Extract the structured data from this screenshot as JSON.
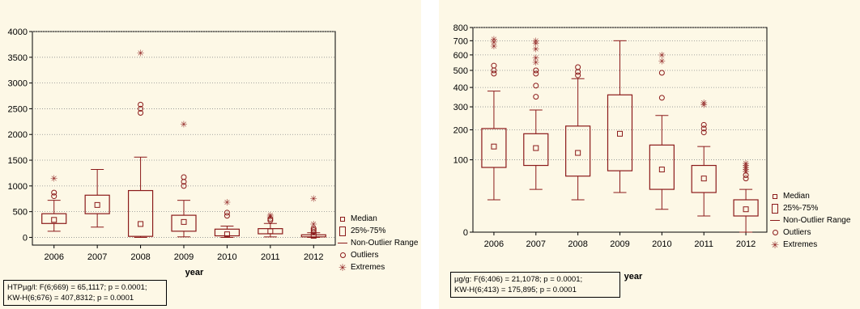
{
  "colors": {
    "box": "#8b1a1a",
    "grid": "#8c8c8c",
    "panel": "#fdf8e6"
  },
  "legend": {
    "median": "Median",
    "iqr": "25%-75%",
    "range": "Non-Outlier Range",
    "outliers": "Outliers",
    "extremes": "Extremes"
  },
  "chart_data": [
    {
      "type": "box",
      "xlabel": "year",
      "ylabel": "",
      "categories": [
        "2006",
        "2007",
        "2008",
        "2009",
        "2010",
        "2011",
        "2012"
      ],
      "yticks": [
        0,
        500,
        1000,
        1500,
        2000,
        2500,
        3000,
        3500,
        4000
      ],
      "ylim": [
        -150,
        4000
      ],
      "grid": "horizontal dotted",
      "legend_position": "bottom-right",
      "stats": [
        "HTPµg/l:  F(6;669) = 65,1117; p = 0.0001;",
        "KW-H(6;676) = 407,8312; p = 0.0001"
      ],
      "boxes": [
        {
          "median": 340,
          "q1": 270,
          "q3": 460,
          "whisker_low": 120,
          "whisker_high": 720,
          "outliers": [
            800,
            870
          ],
          "extremes": [
            1150
          ]
        },
        {
          "median": 630,
          "q1": 460,
          "q3": 820,
          "whisker_low": 200,
          "whisker_high": 1320,
          "outliers": [],
          "extremes": []
        },
        {
          "median": 260,
          "q1": 20,
          "q3": 910,
          "whisker_low": 0,
          "whisker_high": 1560,
          "outliers": [
            2420,
            2500,
            2580
          ],
          "extremes": [
            3580
          ]
        },
        {
          "median": 300,
          "q1": 120,
          "q3": 430,
          "whisker_low": 10,
          "whisker_high": 720,
          "outliers": [
            1000,
            1080,
            1170
          ],
          "extremes": [
            2200
          ]
        },
        {
          "median": 60,
          "q1": 30,
          "q3": 160,
          "whisker_low": 0,
          "whisker_high": 220,
          "outliers": [
            420,
            480
          ],
          "extremes": [
            680
          ]
        },
        {
          "median": 120,
          "q1": 70,
          "q3": 170,
          "whisker_low": 10,
          "whisker_high": 270,
          "outliers": [
            330,
            360
          ],
          "extremes": [
            400,
            430
          ]
        },
        {
          "median": 30,
          "q1": 10,
          "q3": 50,
          "whisker_low": 0,
          "whisker_high": 90,
          "outliers": [
            110,
            140,
            170
          ],
          "extremes": [
            260,
            750
          ]
        }
      ]
    },
    {
      "type": "box",
      "xlabel": "year",
      "ylabel": "",
      "categories": [
        "2006",
        "2007",
        "2008",
        "2009",
        "2010",
        "2011",
        "2012"
      ],
      "yticks": [
        0,
        100,
        200,
        300,
        400,
        500,
        600,
        700,
        800
      ],
      "ylim": [
        0,
        800
      ],
      "scale": "square-root",
      "grid": "horizontal dotted",
      "legend_position": "bottom-right",
      "stats": [
        "µg/g:  F(6;406) = 21,1078; p = 0.0001;",
        "KW-H(6;413) = 175,895; p = 0.0001"
      ],
      "boxes": [
        {
          "median": 140,
          "q1": 80,
          "q3": 205,
          "whisker_low": 20,
          "whisker_high": 380,
          "outliers": [
            480,
            500,
            530
          ],
          "extremes": [
            660,
            690,
            710
          ]
        },
        {
          "median": 135,
          "q1": 85,
          "q3": 185,
          "whisker_low": 35,
          "whisker_high": 285,
          "outliers": [
            350,
            410,
            480,
            500
          ],
          "extremes": [
            550,
            580,
            640,
            680,
            700
          ]
        },
        {
          "median": 120,
          "q1": 60,
          "q3": 215,
          "whisker_low": 20,
          "whisker_high": 450,
          "outliers": [
            470,
            490,
            520
          ],
          "extremes": []
        },
        {
          "median": 185,
          "q1": 72,
          "q3": 360,
          "whisker_low": 30,
          "whisker_high": 700,
          "outliers": [],
          "extremes": []
        },
        {
          "median": 75,
          "q1": 35,
          "q3": 145,
          "whisker_low": 10,
          "whisker_high": 260,
          "outliers": [
            345,
            485
          ],
          "extremes": [
            560,
            600
          ]
        },
        {
          "median": 55,
          "q1": 30,
          "q3": 85,
          "whisker_low": 5,
          "whisker_high": 140,
          "outliers": [
            190,
            205,
            220
          ],
          "extremes": [
            310,
            320
          ]
        },
        {
          "median": 10,
          "q1": 5,
          "q3": 20,
          "whisker_low": 0,
          "whisker_high": 35,
          "outliers": [
            55,
            62
          ],
          "extremes": [
            70,
            75,
            80,
            85,
            90
          ]
        }
      ]
    }
  ]
}
